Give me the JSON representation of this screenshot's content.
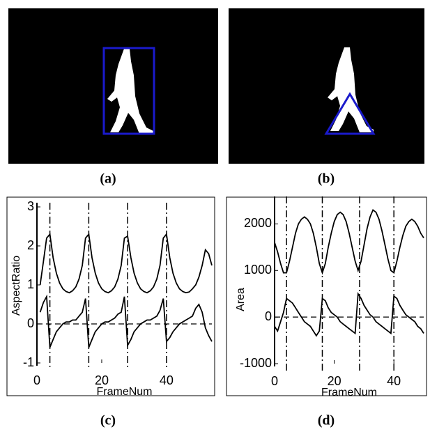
{
  "figure": {
    "panels": [
      "(a)",
      "(b)"
    ]
  },
  "chart_data": [
    {
      "type": "line",
      "label": "(c)",
      "xlabel": "FrameNum",
      "ylabel": "AspectRatio",
      "x": [
        1,
        2,
        3,
        4,
        5,
        6,
        7,
        8,
        9,
        10,
        11,
        12,
        13,
        14,
        15,
        16,
        17,
        18,
        19,
        20,
        21,
        22,
        23,
        24,
        25,
        26,
        27,
        28,
        29,
        30,
        31,
        32,
        33,
        34,
        35,
        36,
        37,
        38,
        39,
        40,
        41,
        42,
        43,
        44,
        45,
        46,
        47,
        48,
        49,
        50,
        51,
        52,
        53,
        54
      ],
      "series": [
        {
          "color": "#000000",
          "values": [
            1.0,
            1.6,
            2.2,
            2.3,
            1.7,
            1.3,
            1.05,
            0.9,
            0.83,
            0.8,
            0.85,
            0.95,
            1.15,
            1.5,
            2.2,
            2.3,
            1.7,
            1.3,
            1.05,
            0.9,
            0.83,
            0.8,
            0.85,
            0.95,
            1.15,
            1.5,
            2.2,
            2.25,
            1.7,
            1.3,
            1.05,
            0.9,
            0.83,
            0.8,
            0.85,
            0.95,
            1.15,
            1.5,
            2.2,
            2.3,
            1.7,
            1.3,
            1.05,
            0.9,
            0.83,
            0.8,
            0.82,
            0.9,
            1.0,
            1.2,
            1.5,
            1.9,
            1.8,
            1.5
          ]
        },
        {
          "color": "#000000",
          "values": [
            0.3,
            0.55,
            0.7,
            -0.6,
            -0.4,
            -0.2,
            -0.1,
            0,
            0.05,
            0.05,
            0.1,
            0.1,
            0.2,
            0.3,
            0.65,
            -0.6,
            -0.4,
            -0.2,
            -0.1,
            0,
            0.05,
            0.05,
            0.1,
            0.15,
            0.25,
            0.3,
            0.7,
            -0.55,
            -0.4,
            -0.2,
            -0.1,
            0,
            0.05,
            0.1,
            0.1,
            0.15,
            0.2,
            0.35,
            0.65,
            -0.45,
            -0.35,
            -0.2,
            -0.1,
            0,
            0.05,
            0.1,
            0.15,
            0.2,
            0.4,
            0.5,
            0.3,
            -0.1,
            -0.3,
            -0.45
          ]
        }
      ],
      "xlim": [
        0,
        54
      ],
      "ylim": [
        -1,
        3
      ],
      "xticks": [
        0,
        20,
        40
      ],
      "yticks": [
        -1,
        0,
        1,
        2,
        3
      ],
      "vlines": [
        4,
        16,
        28,
        40
      ],
      "hline": 0
    },
    {
      "type": "line",
      "label": "(d)",
      "xlabel": "FrameNum",
      "ylabel": "Area",
      "x": [
        0,
        1,
        2,
        3,
        4,
        5,
        6,
        7,
        8,
        9,
        10,
        11,
        12,
        13,
        14,
        15,
        16,
        17,
        18,
        19,
        20,
        21,
        22,
        23,
        24,
        25,
        26,
        27,
        28,
        29,
        30,
        31,
        32,
        33,
        34,
        35,
        36,
        37,
        38,
        39,
        40,
        41,
        42,
        43,
        44,
        45,
        46,
        47,
        48,
        49,
        50
      ],
      "series": [
        {
          "color": "#000000",
          "values": [
            1600,
            1400,
            1150,
            950,
            950,
            1200,
            1500,
            1800,
            2000,
            2100,
            2150,
            2100,
            2000,
            1800,
            1500,
            1150,
            950,
            1150,
            1500,
            1800,
            2050,
            2200,
            2250,
            2200,
            2050,
            1800,
            1500,
            1200,
            1000,
            1200,
            1550,
            1900,
            2150,
            2300,
            2250,
            2100,
            1850,
            1550,
            1250,
            1000,
            950,
            1200,
            1500,
            1750,
            1950,
            2050,
            2100,
            2050,
            1950,
            1800,
            1700
          ]
        },
        {
          "color": "#000000",
          "values": [
            -200,
            -300,
            -100,
            100,
            400,
            350,
            300,
            200,
            100,
            0,
            -100,
            -150,
            -200,
            -300,
            -400,
            -300,
            400,
            350,
            200,
            100,
            50,
            0,
            -100,
            -150,
            -200,
            -250,
            -300,
            -350,
            500,
            400,
            250,
            150,
            50,
            0,
            -100,
            -150,
            -200,
            -250,
            -300,
            -350,
            450,
            400,
            250,
            150,
            50,
            0,
            -50,
            -100,
            -200,
            -250,
            -350
          ]
        }
      ],
      "xlim": [
        0,
        50
      ],
      "ylim": [
        -1000,
        2500
      ],
      "xticks": [
        0,
        20,
        40
      ],
      "yticks": [
        -1000,
        0,
        1000,
        2000
      ],
      "vlines": [
        4,
        16,
        28.5,
        40
      ],
      "hline": 0
    }
  ]
}
